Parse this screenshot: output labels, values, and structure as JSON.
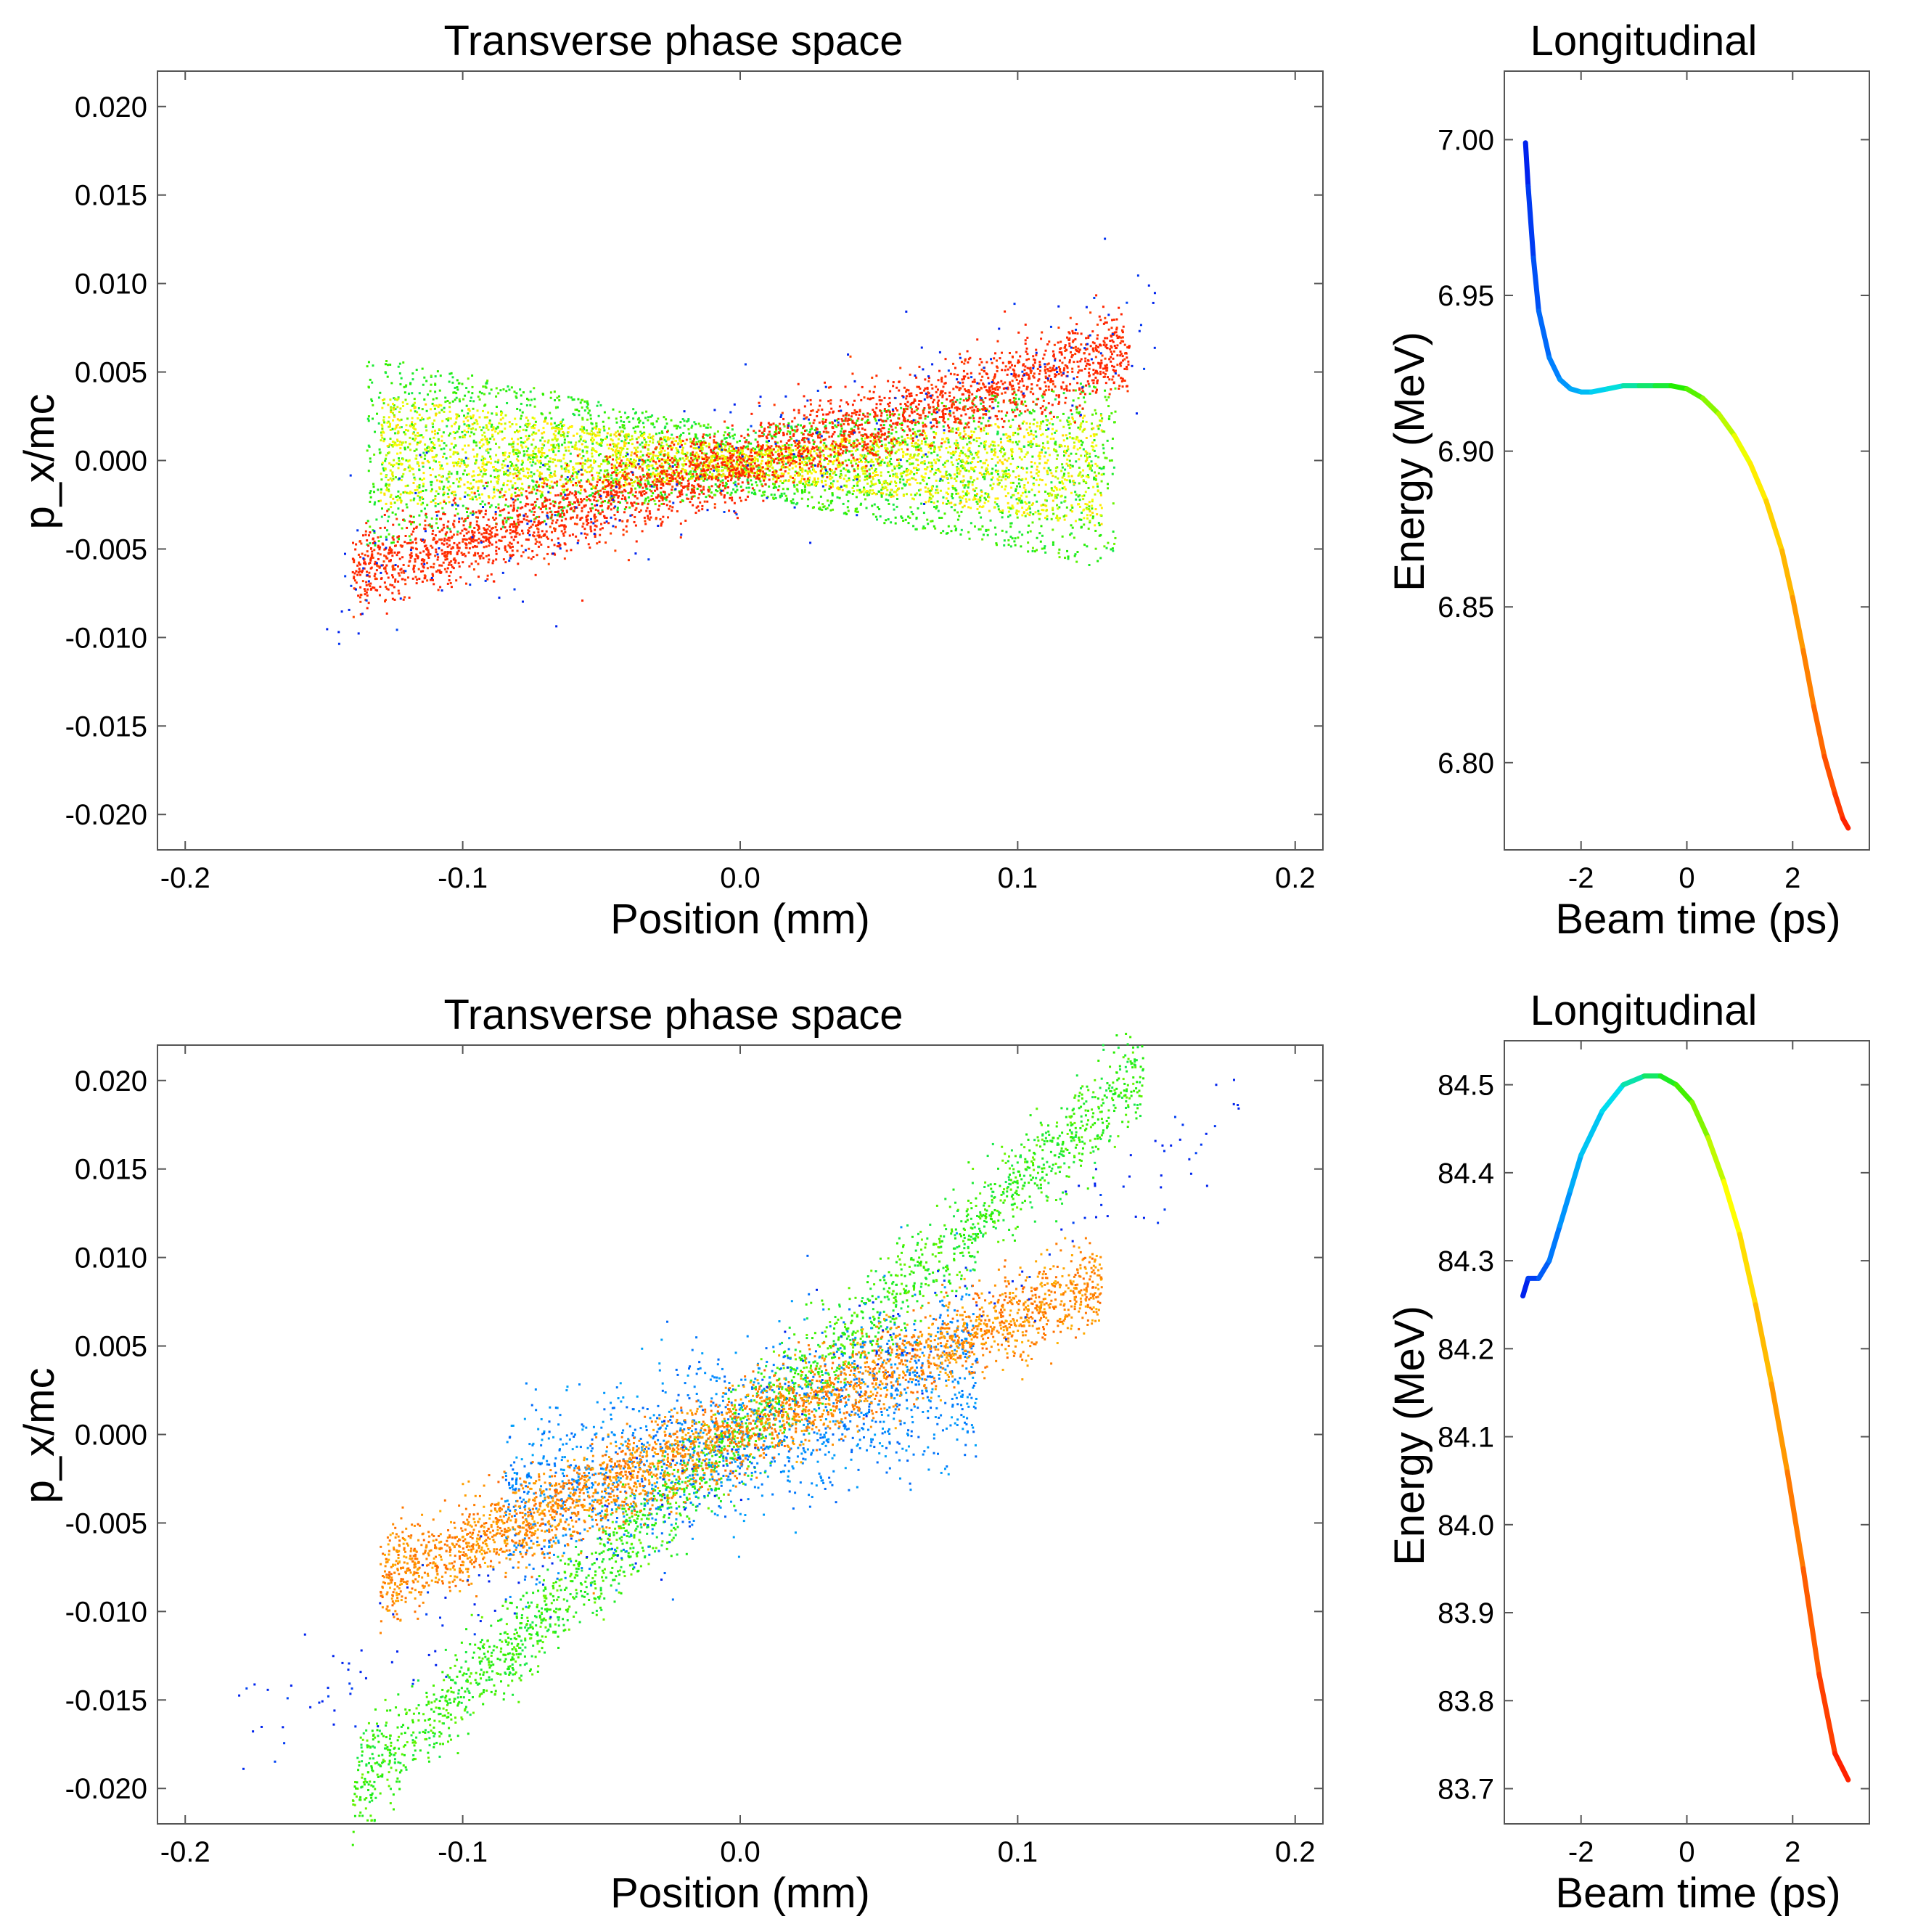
{
  "colors": {
    "frame": "#555555",
    "ramp": [
      "#0022ee",
      "#0088ff",
      "#00ddee",
      "#22ee00",
      "#ffff00",
      "#ff8800",
      "#ff2200"
    ]
  },
  "chart_data": [
    {
      "id": "top-transverse",
      "type": "scatter",
      "title": "Transverse phase space",
      "xlabel": "Position (mm)",
      "ylabel": "p_x/mc",
      "xlim": [
        -0.21,
        0.21
      ],
      "ylim": [
        -0.022,
        0.022
      ],
      "xticks": [
        -0.2,
        -0.1,
        0.0,
        0.1,
        0.2
      ],
      "xtick_labels": [
        "-0.2",
        "-0.1",
        "0.0",
        "0.1",
        "0.2"
      ],
      "yticks": [
        0.02,
        0.015,
        0.01,
        0.005,
        0.0,
        -0.005,
        -0.01,
        -0.015,
        -0.02
      ],
      "ytick_labels": [
        "0.020",
        "0.015",
        "0.010",
        "0.005",
        "0.000",
        "-0.005",
        "-0.010",
        "-0.015",
        "-0.020"
      ],
      "series": [
        {
          "name": "green-cyan bowtie",
          "color_index": 3,
          "count": 2600,
          "kind": "bowtie",
          "x_range": [
            -0.135,
            0.135
          ],
          "slope": -0.005,
          "halfwidth": [
            0.0055,
            0.0018
          ]
        },
        {
          "name": "yellow core",
          "color_index": 4,
          "count": 2600,
          "kind": "bowtie",
          "x_range": [
            -0.13,
            0.13
          ],
          "slope": -0.004,
          "halfwidth": [
            0.0032,
            0.0008
          ]
        },
        {
          "name": "red-orange streak",
          "color_index": 6,
          "count": 3200,
          "kind": "band",
          "x_range": [
            -0.14,
            0.14
          ],
          "slope": 0.045,
          "offset": 0.0,
          "spread": 0.0011
        },
        {
          "name": "blue halo",
          "color_index": 0,
          "count": 260,
          "kind": "band",
          "x_range": [
            -0.15,
            0.15
          ],
          "slope": 0.052,
          "offset": 0.0,
          "spread": 0.0022
        }
      ]
    },
    {
      "id": "top-longitudinal",
      "type": "line",
      "title": "Longitudinal",
      "xlabel": "Beam time (ps)",
      "ylabel": "Energy (MeV)",
      "xlim": [
        -3.45,
        3.45
      ],
      "ylim": [
        6.772,
        7.022
      ],
      "xticks": [
        -2,
        0,
        2
      ],
      "xtick_labels": [
        "-2",
        "0",
        "2"
      ],
      "yticks": [
        7.0,
        6.95,
        6.9,
        6.85,
        6.8
      ],
      "ytick_labels": [
        "7.00",
        "6.95",
        "6.90",
        "6.85",
        "6.80"
      ],
      "x": [
        -3.05,
        -3.0,
        -2.9,
        -2.8,
        -2.6,
        -2.4,
        -2.2,
        -2.0,
        -1.8,
        -1.5,
        -1.2,
        -0.9,
        -0.6,
        -0.3,
        0.0,
        0.3,
        0.6,
        0.9,
        1.2,
        1.5,
        1.8,
        2.0,
        2.2,
        2.4,
        2.6,
        2.8,
        2.95,
        3.05
      ],
      "y": [
        6.999,
        6.985,
        6.962,
        6.945,
        6.93,
        6.923,
        6.92,
        6.919,
        6.919,
        6.92,
        6.921,
        6.921,
        6.921,
        6.921,
        6.92,
        6.917,
        6.912,
        6.905,
        6.896,
        6.884,
        6.868,
        6.853,
        6.836,
        6.818,
        6.802,
        6.79,
        6.782,
        6.779
      ]
    },
    {
      "id": "bottom-transverse",
      "type": "scatter",
      "title": "Transverse phase space",
      "xlabel": "Position (mm)",
      "ylabel": "p_x/mc",
      "xlim": [
        -0.21,
        0.21
      ],
      "ylim": [
        -0.022,
        0.022
      ],
      "xticks": [
        -0.2,
        -0.1,
        0.0,
        0.1,
        0.2
      ],
      "xtick_labels": [
        "-0.2",
        "-0.1",
        "0.0",
        "0.1",
        "0.2"
      ],
      "yticks": [
        0.02,
        0.015,
        0.01,
        0.005,
        0.0,
        -0.005,
        -0.01,
        -0.015,
        -0.02
      ],
      "ytick_labels": [
        "0.020",
        "0.015",
        "0.010",
        "0.005",
        "0.000",
        "-0.005",
        "-0.010",
        "-0.015",
        "-0.020"
      ],
      "series": [
        {
          "name": "cyan-green steep band",
          "color_index": 3,
          "count": 2400,
          "kind": "band",
          "x_range": [
            -0.14,
            0.145
          ],
          "slope": 0.142,
          "offset": 0.0,
          "spread": 0.0013
        },
        {
          "name": "blue wings",
          "color_index": 1,
          "count": 1600,
          "kind": "band",
          "x_range": [
            -0.085,
            0.085
          ],
          "slope": 0.045,
          "offset": 0.0,
          "spread": 0.0024
        },
        {
          "name": "orange-red main band",
          "color_index": 5,
          "count": 3200,
          "kind": "band",
          "x_range": [
            -0.13,
            0.13
          ],
          "slope": 0.065,
          "offset": 0.0003,
          "spread": 0.0012
        },
        {
          "name": "blue halo",
          "color_index": 0,
          "count": 200,
          "kind": "band",
          "x_range": [
            -0.185,
            0.185
          ],
          "slope": 0.095,
          "offset": 0.0,
          "spread": 0.0018
        }
      ]
    },
    {
      "id": "bottom-longitudinal",
      "type": "line",
      "title": "Longitudinal",
      "xlabel": "Beam time (ps)",
      "ylabel": "Energy (MeV)",
      "xlim": [
        -3.45,
        3.45
      ],
      "ylim": [
        83.66,
        84.55
      ],
      "xticks": [
        -2,
        0,
        2
      ],
      "xtick_labels": [
        "-2",
        "0",
        "2"
      ],
      "yticks": [
        84.5,
        84.4,
        84.3,
        84.2,
        84.1,
        84.0,
        83.9,
        83.8,
        83.7
      ],
      "ytick_labels": [
        "84.5",
        "84.4",
        "84.3",
        "84.2",
        "84.1",
        "84.0",
        "83.9",
        "83.8",
        "83.7"
      ],
      "x": [
        -3.1,
        -3.0,
        -2.8,
        -2.6,
        -2.4,
        -2.2,
        -2.0,
        -1.6,
        -1.2,
        -0.8,
        -0.5,
        -0.2,
        0.1,
        0.4,
        0.7,
        1.0,
        1.3,
        1.6,
        1.9,
        2.2,
        2.5,
        2.8,
        3.05
      ],
      "y": [
        84.26,
        84.28,
        84.28,
        84.3,
        84.34,
        84.38,
        84.42,
        84.47,
        84.5,
        84.51,
        84.51,
        84.5,
        84.48,
        84.44,
        84.39,
        84.33,
        84.25,
        84.16,
        84.06,
        83.95,
        83.83,
        83.74,
        83.71
      ]
    }
  ]
}
